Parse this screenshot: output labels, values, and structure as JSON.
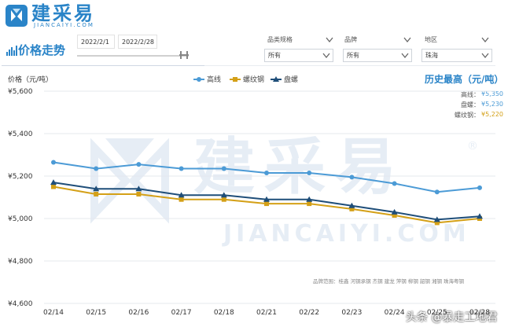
{
  "header": {
    "logo_name": "建采易",
    "logo_sub": "JIANCAIYI.COM",
    "page_title": "价格走势"
  },
  "date_range": {
    "start": "2022/2/1",
    "end": "2022/2/28"
  },
  "filters": [
    {
      "label": "品类规格",
      "value": "所有"
    },
    {
      "label": "品牌",
      "value": "所有"
    },
    {
      "label": "地区",
      "value": "珠海"
    }
  ],
  "history_high": {
    "title": "历史最高（元/吨）",
    "rows": [
      {
        "label": "高线：",
        "value": "¥5,350",
        "color": "#4c9bd6"
      },
      {
        "label": "盘螺：",
        "value": "¥5,230",
        "color": "#4c9bd6"
      },
      {
        "label": "螺纹钢：",
        "value": "¥5,220",
        "color": "#d4a017"
      }
    ]
  },
  "watermark": {
    "main": "建采易",
    "sub": "JIANCAIYI.COM",
    "reg": "®"
  },
  "brands_note": "品牌范围：桂鑫 河钢承钢 杰钢 建龙 萍钢 柳钢 韶钢 湘钢 珠海粤钢",
  "credit": "头条 @暴走工地君",
  "chart_data": {
    "type": "line",
    "ylabel": "价格（元/吨）",
    "ylim": [
      4600,
      5600
    ],
    "yticks": [
      4600,
      4800,
      5000,
      5200,
      5400,
      5600
    ],
    "ytick_labels": [
      "¥4,600",
      "¥4,800",
      "¥5,000",
      "¥5,200",
      "¥5,400",
      "¥5,600"
    ],
    "grid": true,
    "legend_position": "top-center",
    "categories": [
      "02/14",
      "02/15",
      "02/16",
      "02/17",
      "02/18",
      "02/21",
      "02/22",
      "02/23",
      "02/24",
      "02/25",
      "02/28"
    ],
    "series": [
      {
        "name": "高线",
        "color": "#4c9bd6",
        "marker": "circle",
        "values": [
          5265,
          5235,
          5255,
          5235,
          5235,
          5215,
          5215,
          5195,
          5165,
          5125,
          5145
        ]
      },
      {
        "name": "螺纹钢",
        "color": "#d4a017",
        "marker": "square",
        "values": [
          5150,
          5115,
          5115,
          5090,
          5090,
          5070,
          5070,
          5045,
          5015,
          4980,
          5000
        ]
      },
      {
        "name": "盘螺",
        "color": "#1f4e79",
        "marker": "triangle",
        "values": [
          5170,
          5140,
          5140,
          5110,
          5110,
          5090,
          5090,
          5060,
          5030,
          4995,
          5010
        ]
      }
    ]
  }
}
